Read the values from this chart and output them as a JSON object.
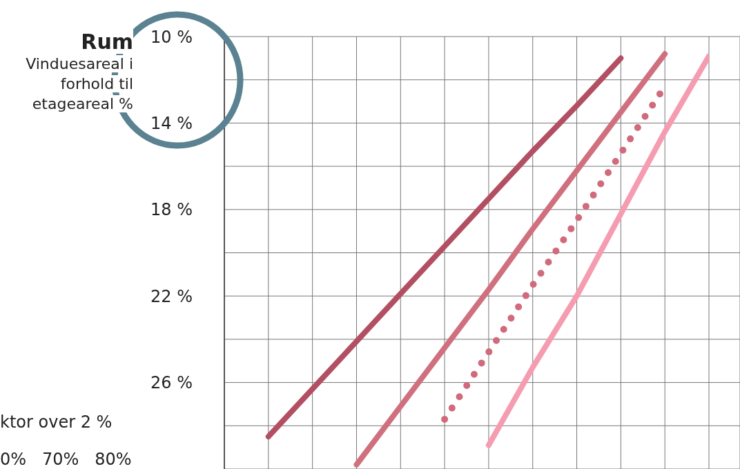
{
  "chart_data": {
    "type": "line",
    "title": "Rum",
    "ylabel": "Vinduesareal i forhold til etageareal %",
    "categories": [
      null,
      null,
      null,
      null,
      null,
      null,
      null,
      null,
      null,
      null,
      null,
      null
    ],
    "series": [
      {
        "color": "#b34f62",
        "values": [
          null,
          28.5,
          26.3,
          24.1,
          21.9,
          19.7,
          17.5,
          15.3,
          13.2,
          11.0,
          null,
          null
        ]
      },
      {
        "color": "#d0707f",
        "values": [
          null,
          null,
          null,
          29.8,
          27.1,
          24.4,
          21.7,
          18.9,
          16.2,
          13.5,
          10.8,
          null
        ]
      },
      {
        "color": "#d06a7c",
        "line_style": "dotted",
        "values": [
          null,
          null,
          null,
          null,
          null,
          27.7,
          24.6,
          21.5,
          18.5,
          15.4,
          12.3,
          null
        ]
      },
      {
        "color": "#f59cb1",
        "values": [
          null,
          null,
          null,
          null,
          null,
          null,
          28.9,
          25.3,
          22.0,
          18.2,
          14.4,
          10.9
        ]
      }
    ],
    "ylim": [
      30,
      10
    ],
    "yticks": [
      {
        "value": 10,
        "label": "10 %"
      },
      {
        "value": 12,
        "label": null
      },
      {
        "value": 14,
        "label": "14 %"
      },
      {
        "value": 16,
        "label": null
      },
      {
        "value": 18,
        "label": "18 %"
      },
      {
        "value": 20,
        "label": null
      },
      {
        "value": 22,
        "label": "22 %"
      },
      {
        "value": 24,
        "label": null
      },
      {
        "value": 26,
        "label": "26 %"
      },
      {
        "value": 28,
        "label": null
      },
      {
        "value": 30,
        "label": null
      }
    ],
    "grid": true,
    "tick_labels": "y",
    "legend": false,
    "annotations": [
      "ktor over 2 %",
      "0%   70%   80%"
    ]
  }
}
